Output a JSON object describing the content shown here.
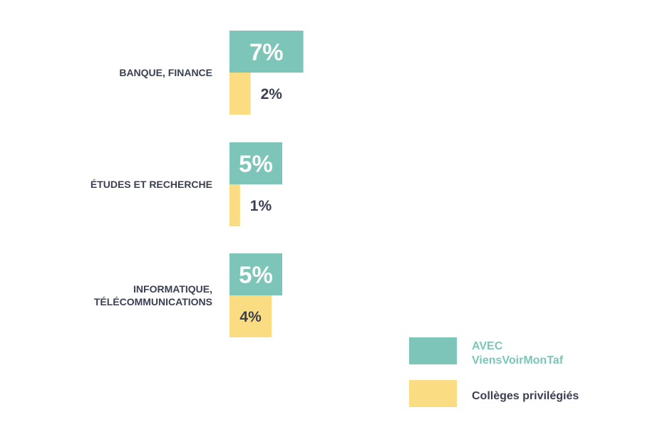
{
  "chart_data": {
    "type": "bar",
    "orientation": "horizontal",
    "categories": [
      [
        "BANQUE, FINANCE"
      ],
      [
        "ÉTUDES ET RECHERCHE"
      ],
      [
        "INFORMATIQUE,",
        "TÉLÉCOMMUNICATIONS"
      ]
    ],
    "series": [
      {
        "name": "AVEC ViensVoirMonTaf",
        "legend_lines": [
          "AVEC",
          "ViensVoirMonTaf"
        ],
        "color": "#7dc4b9",
        "label_color": "#ffffff",
        "values": [
          7,
          5,
          5
        ],
        "labels": [
          "7%",
          "5%",
          "5%"
        ]
      },
      {
        "name": "Collèges privilégiés",
        "legend_lines": [
          "Collèges privilégiés"
        ],
        "color": "#fadc82",
        "label_color": "#3a3f52",
        "values": [
          2,
          1,
          4
        ],
        "labels": [
          "2%",
          "1%",
          "4%"
        ]
      }
    ],
    "value_unit": "%",
    "legend_position": "bottom-right",
    "grid": false
  }
}
